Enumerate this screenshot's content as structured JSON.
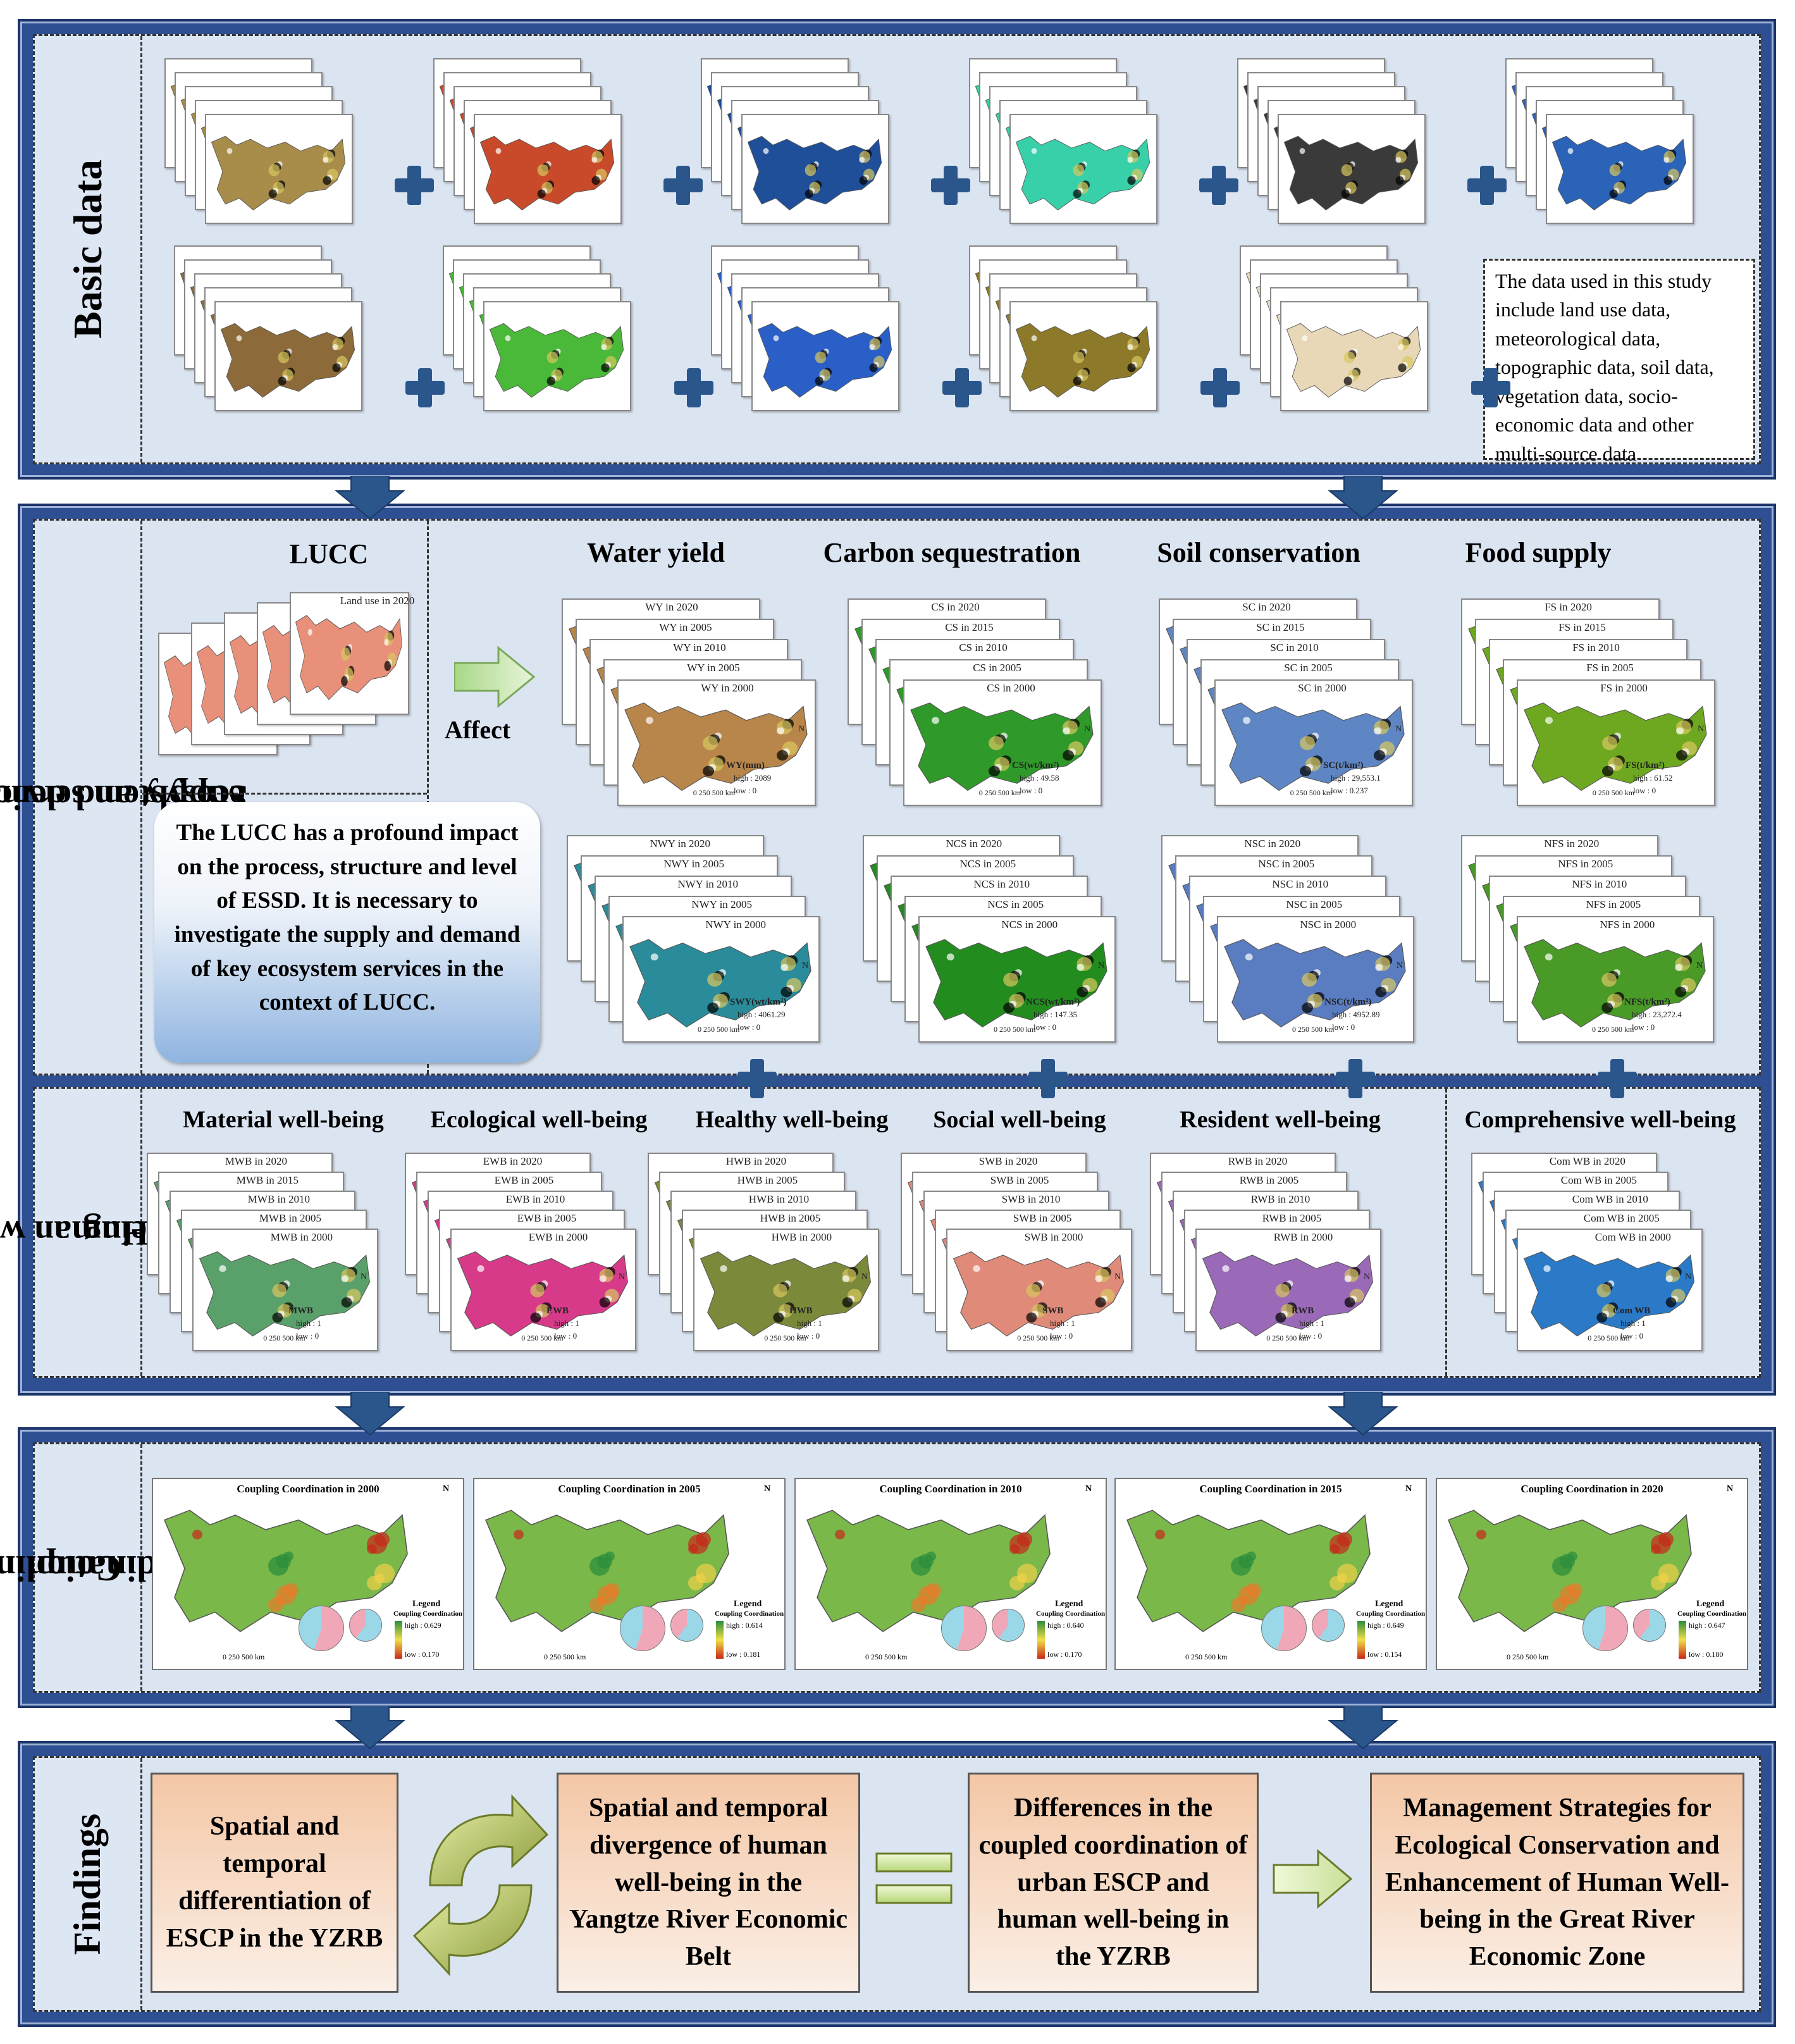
{
  "basic": {
    "label": "Basic data",
    "note": "The data used in this study include land use data, meteorological data, topographic data, soil data, vegetation data, socio-economic data and other multi-source data",
    "row1_colors": [
      "#a88c4a",
      "#c84a2a",
      "#1f4f99",
      "#38d0a8",
      "#3a3a3a",
      "#2a63b8"
    ],
    "row2_colors": [
      "#8c6a3a",
      "#4ab838",
      "#2a5fc8",
      "#8c7a2a",
      "#e8d8b8"
    ]
  },
  "supply": {
    "label_line1": "Supply and demand for",
    "label_line2": "ecosystem services",
    "lucc_title": "LUCC",
    "affect": "Affect",
    "lucc_labels": [
      "Land use in 2000",
      "Land use in 2005",
      "Land use in 2010",
      "Land use in 2015",
      "Land use in 2020"
    ],
    "bubble": "The LUCC has a profound impact on the process, structure and level of ESSD. It is necessary to investigate the supply and demand of key ecosystem services in the context of LUCC.",
    "headers": [
      "Water yield",
      "Carbon sequestration",
      "Soil conservation",
      "Food supply"
    ],
    "supply_stacks": [
      {
        "labels": [
          "WY in 2020",
          "WY in 2005",
          "WY in 2010",
          "WY in 2005",
          "WY in 2000"
        ],
        "color": "#b8864a",
        "legend": "WY(mm)",
        "high": "high : 2089",
        "low": "low : 0"
      },
      {
        "labels": [
          "CS in 2020",
          "CS in 2015",
          "CS in 2010",
          "CS in 2005",
          "CS in 2000"
        ],
        "color": "#2f9a2a",
        "legend": "CS(wt/km²)",
        "high": "high : 49.58",
        "low": "low : 0"
      },
      {
        "labels": [
          "SC in 2020",
          "SC in 2015",
          "SC in 2010",
          "SC in 2005",
          "SC in 2000"
        ],
        "color": "#5e86c4",
        "legend": "SC(t/km²)",
        "high": "high : 29,553.1",
        "low": "low : 0.237"
      },
      {
        "labels": [
          "FS in 2020",
          "FS in 2015",
          "FS in 2010",
          "FS in 2005",
          "FS in 2000"
        ],
        "color": "#6ea820",
        "legend": "FS(t/km²)",
        "high": "high : 61.52",
        "low": "low : 0"
      }
    ],
    "demand_stacks": [
      {
        "labels": [
          "NWY in 2020",
          "NWY in 2005",
          "NWY in 2010",
          "NWY in 2005",
          "NWY in 2000"
        ],
        "color": "#2a8c9a",
        "legend": "SWY(wt/km²)",
        "high": "high : 4061.29",
        "low": "low : 0"
      },
      {
        "labels": [
          "NCS in 2020",
          "NCS in 2005",
          "NCS in 2010",
          "NCS in 2005",
          "NCS in 2000"
        ],
        "color": "#238c1f",
        "legend": "NCS(wt/km²)",
        "high": "high : 147.35",
        "low": "low : 0"
      },
      {
        "labels": [
          "NSC in 2020",
          "NSC in 2005",
          "NSC in 2010",
          "NSC in 2005",
          "NSC in 2000"
        ],
        "color": "#5a7cc0",
        "legend": "NSC(t/km²)",
        "high": "high : 4952.89",
        "low": "low : 0"
      },
      {
        "labels": [
          "NFS in 2020",
          "NFS in 2005",
          "NFS in 2010",
          "NFS in 2005",
          "NFS in 2000"
        ],
        "color": "#4a9a28",
        "legend": "NFS(t/km²)",
        "high": "high : 23,272.4",
        "low": "low : 0"
      }
    ]
  },
  "wellbeing": {
    "label_line1": "Human well-",
    "label_line2": "being",
    "headers": [
      "Material well-being",
      "Ecological well-being",
      "Healthy well-being",
      "Social well-being",
      "Resident well-being",
      "Comprehensive well-being"
    ],
    "stacks": [
      {
        "labels": [
          "MWB in 2020",
          "MWB in 2015",
          "MWB in 2010",
          "MWB in 2005",
          "MWB in 2000"
        ],
        "color": "#5aa06a",
        "legend": "MWB",
        "high": "high : 1",
        "low": "low : 0"
      },
      {
        "labels": [
          "EWB in 2020",
          "EWB in 2005",
          "EWB in 2010",
          "EWB in 2005",
          "EWB in 2000"
        ],
        "color": "#d83a8a",
        "legend": "EWB",
        "high": "high : 1",
        "low": "low : 0"
      },
      {
        "labels": [
          "HWB in 2020",
          "HWB in 2005",
          "HWB in 2010",
          "HWB in 2005",
          "HWB in 2000"
        ],
        "color": "#7a8a3a",
        "legend": "HWB",
        "high": "high : 1",
        "low": "low : 0"
      },
      {
        "labels": [
          "SWB in 2020",
          "SWB in 2005",
          "SWB in 2010",
          "SWB in 2005",
          "SWB in 2000"
        ],
        "color": "#e08a7a",
        "legend": "SWB",
        "high": "high : 1",
        "low": "low : 0"
      },
      {
        "labels": [
          "RWB in 2020",
          "RWB in 2005",
          "RWB in 2010",
          "RWB in 2005",
          "RWB in 2000"
        ],
        "color": "#9a6ab8",
        "legend": "RWB",
        "high": "high : 1",
        "low": "low : 0"
      },
      {
        "labels": [
          "Com WB in 2020",
          "Com WB in 2005",
          "Com WB in 2010",
          "Com WB in 2005",
          "Com WB in 2000"
        ],
        "color": "#2a7ac8",
        "legend": "Com WB",
        "high": "high : 1",
        "low": "low : 0"
      }
    ]
  },
  "coupling": {
    "label_line1": "Coupling",
    "label_line2": "coordination",
    "legend_title": "Legend",
    "legend_sub": "Coupling Coordination",
    "maps": [
      {
        "title": "Coupling Coordination in 2000",
        "high": "high : 0.629",
        "low": "low : 0.170"
      },
      {
        "title": "Coupling Coordination in 2005",
        "high": "high : 0.614",
        "low": "low : 0.181"
      },
      {
        "title": "Coupling Coordination in 2010",
        "high": "high : 0.640",
        "low": "low : 0.170"
      },
      {
        "title": "Coupling Coordination in 2015",
        "high": "high : 0.649",
        "low": "low : 0.154"
      },
      {
        "title": "Coupling Coordination in 2020",
        "high": "high : 0.647",
        "low": "low : 0.180"
      }
    ]
  },
  "findings": {
    "label": "Findings",
    "box1": "Spatial and temporal differentiation of ESCP in the YZRB",
    "box2": "Spatial and temporal divergence of human well-being in the Yangtze River Economic Belt",
    "box3": "Differences in the coupled coordination of urban ESCP and human well-being in the YZRB",
    "box4": "Management Strategies for Ecological Conservation and Enhancement of Human Well-being in the Great River Economic Zone"
  },
  "scale_text": "0  250  500 km",
  "north": "N"
}
